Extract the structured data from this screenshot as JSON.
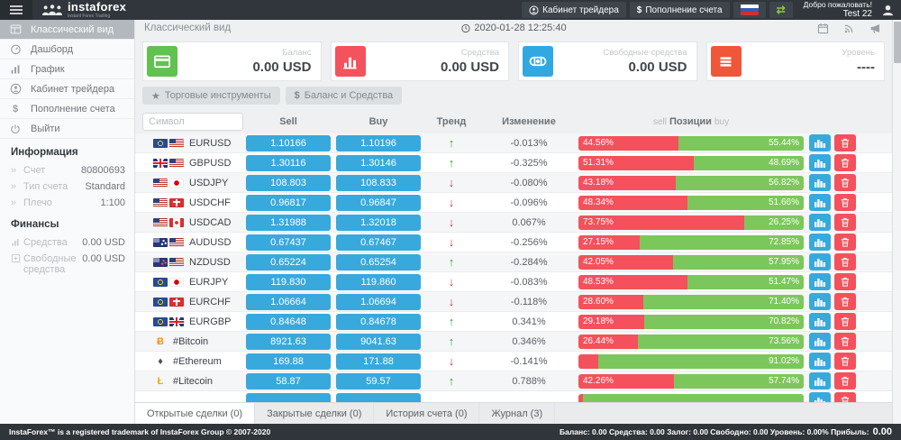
{
  "header": {
    "brand": "instaforex",
    "brand_sub": "Instant Forex Trading",
    "cabinet_label": "Кабинет трейдера",
    "deposit_label": "Пополнение счета",
    "welcome_line1": "Добро пожаловать!",
    "welcome_line2": "Test 22"
  },
  "topbar": {
    "page_title": "Классический вид",
    "datetime": "2020-01-28 12:25:40"
  },
  "sidebar": {
    "menu": [
      {
        "label": "Классический вид",
        "icon": "classic-view-icon",
        "active": true
      },
      {
        "label": "Дашборд",
        "icon": "dashboard-icon"
      },
      {
        "label": "График",
        "icon": "chart-icon"
      },
      {
        "label": "Кабинет трейдера",
        "icon": "user-icon"
      },
      {
        "label": "Пополнение счета",
        "icon": "dollar-icon"
      },
      {
        "label": "Выйти",
        "icon": "power-icon"
      }
    ],
    "info_title": "Информация",
    "info_rows": [
      {
        "icon": "chevron-right-icon",
        "label": "Счет",
        "value": "80800693"
      },
      {
        "icon": "chevron-right-icon",
        "label": "Тип счета",
        "value": "Standard"
      },
      {
        "icon": "chevron-right-icon",
        "label": "Плечо",
        "value": "1:100"
      }
    ],
    "finance_title": "Финансы",
    "finance_rows": [
      {
        "icon": "equity-icon",
        "label": "Средства",
        "value": "0.00 USD"
      },
      {
        "icon": "free-funds-icon",
        "label": "Свободные средства",
        "value": "0.00 USD"
      }
    ]
  },
  "cards": [
    {
      "label": "Баланс",
      "value": "0.00 USD",
      "icon": "credit-card-icon",
      "color": "#61c250"
    },
    {
      "label": "Средства",
      "value": "0.00 USD",
      "icon": "bar-chart-icon",
      "color": "#f4525d"
    },
    {
      "label": "Свободные средства",
      "value": "0.00 USD",
      "icon": "binoculars-icon",
      "color": "#31a9e0"
    },
    {
      "label": "Уровень",
      "value": "----",
      "icon": "menu-lines-icon",
      "color": "#f0563a"
    }
  ],
  "toolbar": {
    "instruments_button": "Торговые инструменты",
    "balance_button": "Баланс и Средства"
  },
  "table": {
    "symbol_placeholder": "Символ",
    "headers": {
      "sell": "Sell",
      "buy": "Buy",
      "trend": "Тренд",
      "change": "Изменение",
      "positions_sell": "sell",
      "positions": "Позиции",
      "positions_buy": "buy"
    },
    "rows": [
      {
        "symbol": "EURUSD",
        "flags": [
          "eu",
          "us"
        ],
        "sell": "1.10166",
        "buy": "1.10196",
        "trend": "up",
        "change": "-0.013%",
        "sell_pct": 44.56,
        "sell_label": "44.56%",
        "buy_label": "55.44%"
      },
      {
        "symbol": "GBPUSD",
        "flags": [
          "gb",
          "us"
        ],
        "sell": "1.30116",
        "buy": "1.30146",
        "trend": "up",
        "change": "-0.325%",
        "sell_pct": 51.31,
        "sell_label": "51.31%",
        "buy_label": "48.69%"
      },
      {
        "symbol": "USDJPY",
        "flags": [
          "us",
          "jp"
        ],
        "sell": "108.803",
        "buy": "108.833",
        "trend": "down",
        "change": "-0.080%",
        "sell_pct": 43.18,
        "sell_label": "43.18%",
        "buy_label": "56.82%"
      },
      {
        "symbol": "USDCHF",
        "flags": [
          "us",
          "ch"
        ],
        "sell": "0.96817",
        "buy": "0.96847",
        "trend": "down",
        "change": "-0.096%",
        "sell_pct": 48.34,
        "sell_label": "48.34%",
        "buy_label": "51.66%"
      },
      {
        "symbol": "USDCAD",
        "flags": [
          "us",
          "ca"
        ],
        "sell": "1.31988",
        "buy": "1.32018",
        "trend": "down",
        "change": "0.067%",
        "sell_pct": 73.75,
        "sell_label": "73.75%",
        "buy_label": "26.25%"
      },
      {
        "symbol": "AUDUSD",
        "flags": [
          "au",
          "us"
        ],
        "sell": "0.67437",
        "buy": "0.67467",
        "trend": "down",
        "change": "-0.256%",
        "sell_pct": 27.15,
        "sell_label": "27.15%",
        "buy_label": "72.85%"
      },
      {
        "symbol": "NZDUSD",
        "flags": [
          "nz",
          "us"
        ],
        "sell": "0.65224",
        "buy": "0.65254",
        "trend": "up",
        "change": "-0.284%",
        "sell_pct": 42.05,
        "sell_label": "42.05%",
        "buy_label": "57.95%"
      },
      {
        "symbol": "EURJPY",
        "flags": [
          "eu",
          "jp"
        ],
        "sell": "119.830",
        "buy": "119.860",
        "trend": "down",
        "change": "-0.083%",
        "sell_pct": 48.53,
        "sell_label": "48.53%",
        "buy_label": "51.47%"
      },
      {
        "symbol": "EURCHF",
        "flags": [
          "eu",
          "ch"
        ],
        "sell": "1.06664",
        "buy": "1.06694",
        "trend": "down",
        "change": "-0.118%",
        "sell_pct": 28.6,
        "sell_label": "28.60%",
        "buy_label": "71.40%"
      },
      {
        "symbol": "EURGBP",
        "flags": [
          "eu",
          "gb"
        ],
        "sell": "0.84648",
        "buy": "0.84678",
        "trend": "up",
        "change": "0.341%",
        "sell_pct": 29.18,
        "sell_label": "29.18%",
        "buy_label": "70.82%"
      },
      {
        "symbol": "#Bitcoin",
        "flags": [],
        "crypto_glyph": "Ƀ",
        "crypto_color": "#f7931a",
        "sell": "8921.63",
        "buy": "9041.63",
        "trend": "up",
        "change": "0.346%",
        "sell_pct": 26.44,
        "sell_label": "26.44%",
        "buy_label": "73.56%"
      },
      {
        "symbol": "#Ethereum",
        "flags": [],
        "crypto_glyph": "♦",
        "crypto_color": "#4d5256",
        "sell": "169.88",
        "buy": "171.88",
        "trend": "down",
        "change": "-0.141%",
        "sell_pct": 8.98,
        "sell_label": "",
        "buy_label": "91.02%"
      },
      {
        "symbol": "#Litecoin",
        "flags": [],
        "crypto_glyph": "Ł",
        "crypto_color": "#e8b207",
        "sell": "58.87",
        "buy": "59.57",
        "trend": "up",
        "change": "0.788%",
        "sell_pct": 42.26,
        "sell_label": "42.26%",
        "buy_label": "57.74%"
      },
      {
        "symbol": "",
        "flags": [],
        "sell": "",
        "buy": "",
        "change": "",
        "sell_pct": 1.5,
        "sell_label": "",
        "buy_label": ""
      }
    ]
  },
  "tabs": [
    {
      "label": "Открытые сделки (0)",
      "active": true
    },
    {
      "label": "Закрытые сделки (0)"
    },
    {
      "label": "История счета (0)"
    },
    {
      "label": "Журнал (3)"
    }
  ],
  "footer": {
    "copyright": "InstaForex™ is a registered trademark of InstaForex Group © 2007-2020",
    "summary_label": "Баланс: 0.00 Средства: 0.00 Залог: 0.00 Свободно: 0.00 Уровень: 0.00% Прибыль:",
    "profit_value": "0.00"
  }
}
